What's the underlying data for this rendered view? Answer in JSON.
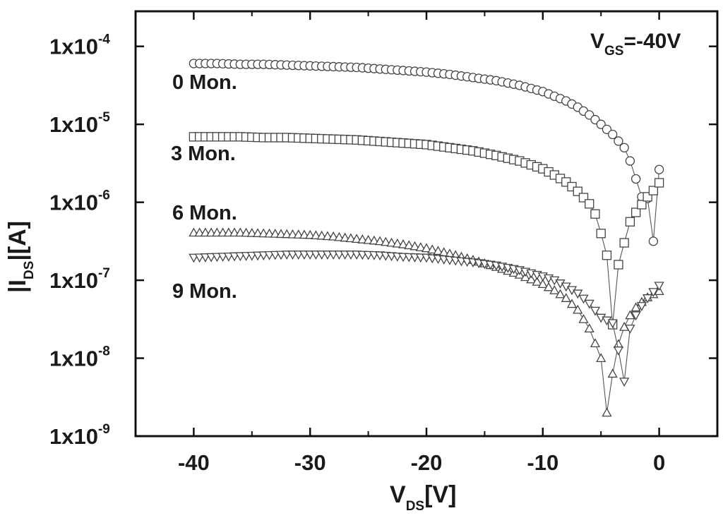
{
  "chart_data": {
    "type": "scatter",
    "title": "",
    "xlabel": {
      "main": "V",
      "sub": "DS",
      "unit": "[V]"
    },
    "ylabel": {
      "prefix": "|I",
      "sub": "DS",
      "suffix": "|[A]"
    },
    "xlim": [
      -45,
      5
    ],
    "ylim_log10": [
      -9,
      -3.55
    ],
    "y_scale": "log",
    "x_ticks": [
      -40,
      -30,
      -20,
      -10,
      0
    ],
    "x_tick_labels": [
      "-40",
      "-30",
      "-20",
      "-10",
      "0"
    ],
    "y_ticks": [
      -9,
      -8,
      -7,
      -6,
      -5,
      -4
    ],
    "y_tick_labels": [
      {
        "base": "1x10",
        "exp": "-9"
      },
      {
        "base": "1x10",
        "exp": "-8"
      },
      {
        "base": "1x10",
        "exp": "-7"
      },
      {
        "base": "1x10",
        "exp": "-6"
      },
      {
        "base": "1x10",
        "exp": "-5"
      },
      {
        "base": "1x10",
        "exp": "-4"
      }
    ],
    "annotation": {
      "main": "V",
      "sub": "GS",
      "value": "=-40V"
    },
    "series": [
      {
        "name": "0 Mon.",
        "marker": "circle",
        "label_pos": "above",
        "x": [
          -40,
          -38,
          -36,
          -34,
          -32,
          -30,
          -28,
          -26,
          -24,
          -22,
          -20,
          -18,
          -16,
          -14,
          -12,
          -10,
          -8,
          -7,
          -6,
          -5,
          -4,
          -3,
          -2.5,
          -2,
          -1.5,
          -1,
          -0.5,
          0
        ],
        "y_log": [
          -4.22,
          -4.22,
          -4.23,
          -4.23,
          -4.24,
          -4.25,
          -4.26,
          -4.27,
          -4.29,
          -4.31,
          -4.33,
          -4.36,
          -4.4,
          -4.44,
          -4.5,
          -4.58,
          -4.7,
          -4.78,
          -4.88,
          -5.0,
          -5.13,
          -5.3,
          -5.47,
          -5.7,
          -5.93,
          -5.95,
          -6.5,
          -5.58
        ]
      },
      {
        "name": "3 Mon.",
        "marker": "square",
        "label_pos": "above",
        "x": [
          -40,
          -38,
          -36,
          -34,
          -32,
          -30,
          -28,
          -26,
          -24,
          -22,
          -20,
          -18,
          -16,
          -14,
          -12,
          -10,
          -9,
          -8,
          -7,
          -6,
          -5.5,
          -5,
          -4.5,
          -4,
          -3.5,
          -3,
          -2.5,
          -2,
          -1.5,
          -1,
          -0.5,
          0
        ],
        "y_log": [
          -5.16,
          -5.16,
          -5.16,
          -5.17,
          -5.17,
          -5.18,
          -5.19,
          -5.2,
          -5.22,
          -5.24,
          -5.26,
          -5.3,
          -5.34,
          -5.4,
          -5.47,
          -5.57,
          -5.65,
          -5.74,
          -5.86,
          -6.02,
          -6.15,
          -6.4,
          -6.68,
          -7.57,
          -6.8,
          -6.52,
          -6.25,
          -6.13,
          -6.03,
          -5.93,
          -5.85,
          -5.75
        ]
      },
      {
        "name": "6 Mon.",
        "marker": "triangle-up",
        "label_pos": "above",
        "x": [
          -40,
          -38,
          -36,
          -34,
          -32,
          -30,
          -28,
          -26,
          -24,
          -22,
          -20,
          -18,
          -16,
          -14,
          -12,
          -10,
          -9,
          -8,
          -7,
          -6,
          -5,
          -4.5,
          -4,
          -3.5,
          -3,
          -2.5,
          -2,
          -1.5,
          -1,
          -0.5,
          0
        ],
        "y_log": [
          -6.39,
          -6.39,
          -6.39,
          -6.4,
          -6.41,
          -6.42,
          -6.44,
          -6.47,
          -6.5,
          -6.54,
          -6.59,
          -6.66,
          -6.74,
          -6.83,
          -6.93,
          -7.05,
          -7.13,
          -7.23,
          -7.38,
          -7.62,
          -8.0,
          -8.7,
          -8.2,
          -7.82,
          -7.6,
          -7.45,
          -7.35,
          -7.28,
          -7.22,
          -7.18,
          -7.14
        ]
      },
      {
        "name": "9 Mon.",
        "marker": "triangle-down",
        "label_pos": "below",
        "x": [
          -40,
          -38,
          -36,
          -34,
          -32,
          -30,
          -28,
          -26,
          -24,
          -22,
          -20,
          -18,
          -16,
          -14,
          -12,
          -10,
          -9,
          -8,
          -7,
          -6,
          -5,
          -4,
          -3.5,
          -3,
          -2.5,
          -2,
          -1.5,
          -1,
          -0.5,
          0
        ],
        "y_log": [
          -6.71,
          -6.7,
          -6.69,
          -6.68,
          -6.67,
          -6.67,
          -6.67,
          -6.67,
          -6.68,
          -6.7,
          -6.71,
          -6.74,
          -6.77,
          -6.81,
          -6.87,
          -6.95,
          -7.0,
          -7.08,
          -7.17,
          -7.3,
          -7.48,
          -7.55,
          -7.9,
          -8.3,
          -7.62,
          -7.45,
          -7.33,
          -7.23,
          -7.15,
          -7.07
        ]
      }
    ]
  }
}
